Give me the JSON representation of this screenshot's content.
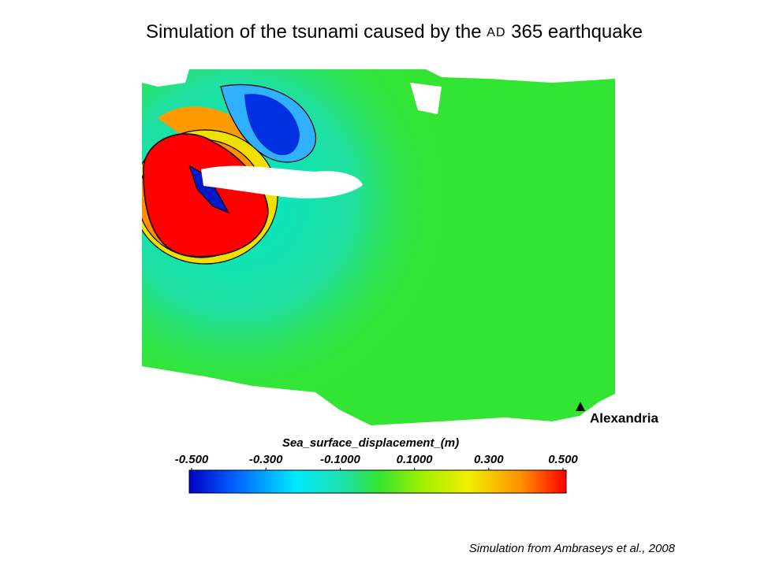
{
  "title": {
    "text_before": "Simulation of the tsunami caused by the",
    "era": "AD",
    "text_after": "365 earthquake"
  },
  "map": {
    "location_label": "Alexandria",
    "colorbar": {
      "title": "Sea_surface_displacement_(m)",
      "range": [
        -0.5,
        0.5
      ],
      "ticks": [
        {
          "value": -0.5,
          "label": "-0.500"
        },
        {
          "value": -0.3,
          "label": "-0.300"
        },
        {
          "value": -0.1,
          "label": "-0.1000"
        },
        {
          "value": 0.1,
          "label": "0.1000"
        },
        {
          "value": 0.3,
          "label": "0.300"
        },
        {
          "value": 0.5,
          "label": "0.500"
        }
      ]
    }
  },
  "caption": "Simulation from Ambraseys et al., 2008"
}
